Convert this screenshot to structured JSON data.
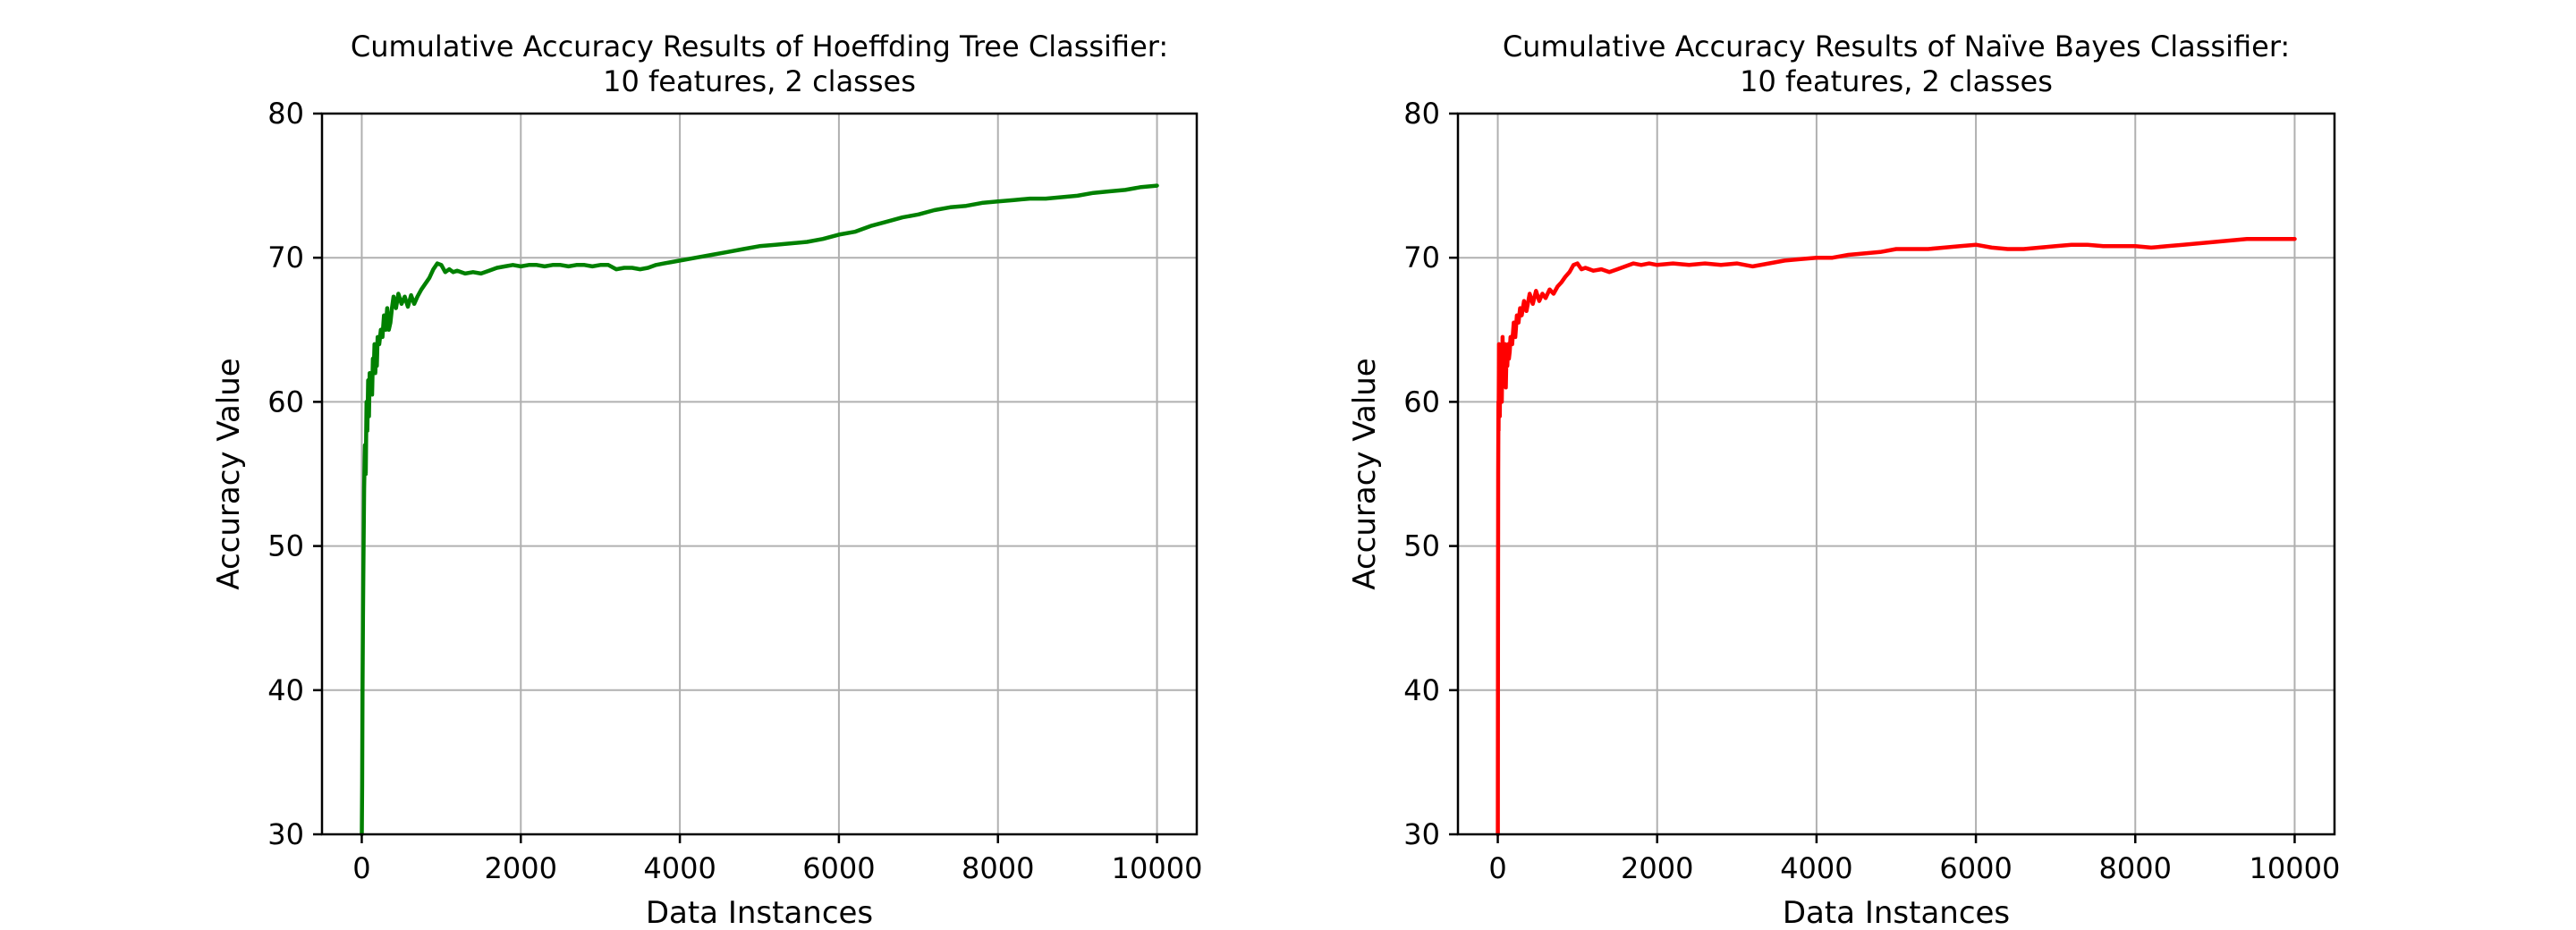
{
  "chart_data": [
    {
      "type": "line",
      "title_line1": "Cumulative Accuracy Results of Hoeffding Tree Classifier:",
      "title_line2": "10 features, 2 classes",
      "xlabel": "Data Instances",
      "ylabel": "Accuracy Value",
      "xlim": [
        -500,
        10500
      ],
      "ylim": [
        30,
        80
      ],
      "xticks": [
        0,
        2000,
        4000,
        6000,
        8000,
        10000
      ],
      "yticks": [
        30,
        40,
        50,
        60,
        70,
        80
      ],
      "grid": true,
      "color": "#008000",
      "series": [
        {
          "x": [
            1,
            5,
            10,
            15,
            20,
            30,
            40,
            50,
            60,
            70,
            80,
            90,
            100,
            110,
            120,
            130,
            140,
            150,
            160,
            170,
            180,
            190,
            200,
            220,
            240,
            260,
            280,
            300,
            320,
            340,
            360,
            380,
            400,
            430,
            460,
            500,
            540,
            580,
            620,
            660,
            700,
            750,
            800,
            850,
            900,
            950,
            1000,
            1050,
            1100,
            1150,
            1200,
            1300,
            1400,
            1500,
            1600,
            1700,
            1800,
            1900,
            2000,
            2100,
            2200,
            2300,
            2400,
            2500,
            2600,
            2700,
            2800,
            2900,
            3000,
            3100,
            3200,
            3300,
            3400,
            3500,
            3600,
            3700,
            3800,
            3900,
            4000,
            4200,
            4400,
            4600,
            4800,
            5000,
            5200,
            5400,
            5600,
            5800,
            6000,
            6200,
            6400,
            6600,
            6800,
            7000,
            7200,
            7400,
            7600,
            7800,
            8000,
            8200,
            8400,
            8600,
            8800,
            9000,
            9200,
            9400,
            9600,
            9800,
            10000
          ],
          "y": [
            30,
            33.5,
            40,
            45,
            48,
            54,
            57,
            55,
            60,
            58,
            61.5,
            59,
            62,
            60.5,
            61.5,
            60.5,
            63,
            62,
            64,
            62,
            63.5,
            62.5,
            64.5,
            64,
            65,
            64.5,
            66,
            65,
            66.5,
            65,
            65.5,
            66.5,
            67.3,
            66.5,
            67.5,
            66.8,
            67.3,
            66.6,
            67.4,
            66.8,
            67.3,
            67.8,
            68.2,
            68.6,
            69.2,
            69.6,
            69.5,
            69.0,
            69.2,
            69.0,
            69.1,
            68.9,
            69.0,
            68.9,
            69.1,
            69.3,
            69.4,
            69.5,
            69.4,
            69.5,
            69.5,
            69.4,
            69.5,
            69.5,
            69.4,
            69.5,
            69.5,
            69.4,
            69.5,
            69.5,
            69.2,
            69.3,
            69.3,
            69.2,
            69.3,
            69.5,
            69.6,
            69.7,
            69.8,
            70.0,
            70.2,
            70.4,
            70.6,
            70.8,
            70.9,
            71.0,
            71.1,
            71.3,
            71.6,
            71.8,
            72.2,
            72.5,
            72.8,
            73.0,
            73.3,
            73.5,
            73.6,
            73.8,
            73.9,
            74.0,
            74.1,
            74.1,
            74.2,
            74.3,
            74.5,
            74.6,
            74.7,
            74.9,
            75.0
          ]
        }
      ]
    },
    {
      "type": "line",
      "title_line1": "Cumulative Accuracy Results of Naïve Bayes Classifier:",
      "title_line2": "10 features, 2 classes",
      "xlabel": "Data Instances",
      "ylabel": "Accuracy Value",
      "xlim": [
        -500,
        10500
      ],
      "ylim": [
        30,
        80
      ],
      "xticks": [
        0,
        2000,
        4000,
        6000,
        8000,
        10000
      ],
      "yticks": [
        30,
        40,
        50,
        60,
        70,
        80
      ],
      "grid": true,
      "color": "#ff0000",
      "series": [
        {
          "x": [
            1,
            3,
            5,
            8,
            10,
            15,
            20,
            25,
            30,
            40,
            50,
            60,
            70,
            80,
            90,
            100,
            110,
            120,
            130,
            140,
            150,
            160,
            180,
            200,
            220,
            240,
            260,
            280,
            300,
            330,
            360,
            400,
            440,
            480,
            520,
            560,
            600,
            650,
            700,
            750,
            800,
            850,
            900,
            950,
            1000,
            1050,
            1100,
            1200,
            1300,
            1400,
            1500,
            1600,
            1700,
            1800,
            1900,
            2000,
            2200,
            2400,
            2600,
            2800,
            3000,
            3200,
            3400,
            3600,
            3800,
            4000,
            4200,
            4400,
            4600,
            4800,
            5000,
            5200,
            5400,
            5600,
            5800,
            6000,
            6200,
            6400,
            6600,
            6800,
            7000,
            7200,
            7400,
            7600,
            7800,
            8000,
            8200,
            8400,
            8600,
            8800,
            9000,
            9200,
            9400,
            9600,
            9800,
            10000
          ],
          "y": [
            30,
            45,
            55,
            60,
            58,
            64,
            61,
            59,
            62.5,
            63.5,
            60,
            64.5,
            61.5,
            62,
            64,
            61,
            63.5,
            62.5,
            64,
            63,
            63.5,
            64.5,
            64,
            65.5,
            64.5,
            66,
            65.5,
            66.5,
            66,
            67,
            66.3,
            67.5,
            66.8,
            67.7,
            67,
            67.5,
            67.2,
            67.8,
            67.5,
            68.0,
            68.3,
            68.7,
            69.0,
            69.5,
            69.6,
            69.2,
            69.3,
            69.1,
            69.2,
            69.0,
            69.2,
            69.4,
            69.6,
            69.5,
            69.6,
            69.5,
            69.6,
            69.5,
            69.6,
            69.5,
            69.6,
            69.4,
            69.6,
            69.8,
            69.9,
            70.0,
            70.0,
            70.2,
            70.3,
            70.4,
            70.6,
            70.6,
            70.6,
            70.7,
            70.8,
            70.9,
            70.7,
            70.6,
            70.6,
            70.7,
            70.8,
            70.9,
            70.9,
            70.8,
            70.8,
            70.8,
            70.7,
            70.8,
            70.9,
            71.0,
            71.1,
            71.2,
            71.3,
            71.3,
            71.3,
            71.3
          ]
        }
      ]
    }
  ]
}
